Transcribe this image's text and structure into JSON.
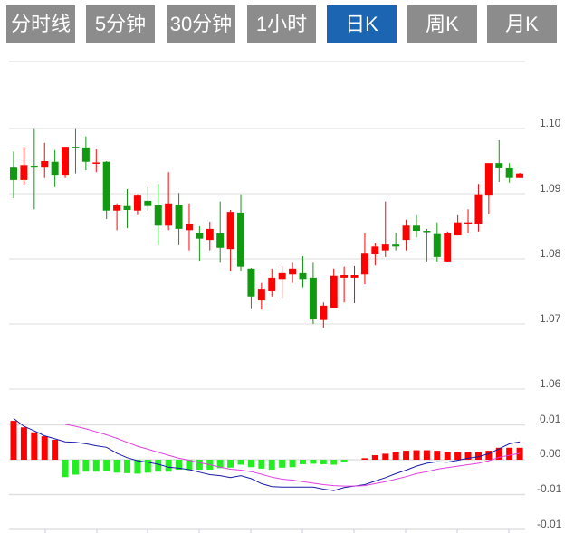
{
  "tabs": [
    {
      "label": "分时线",
      "active": false
    },
    {
      "label": "5分钟",
      "active": false
    },
    {
      "label": "30分钟",
      "active": false
    },
    {
      "label": "1小时",
      "active": false
    },
    {
      "label": "日K",
      "active": true
    },
    {
      "label": "周K",
      "active": false
    },
    {
      "label": "月K",
      "active": false
    }
  ],
  "colors": {
    "tab_bg": "#8c8c8c",
    "tab_active_bg": "#1b65b2",
    "up": "#ff0000",
    "down": "#129912",
    "macd_up": "#ff0000",
    "macd_down": "#22ee22",
    "dif_line": "#1a1aa8",
    "dea_line": "#e040e0"
  },
  "chart_data": [
    {
      "type": "candlestick",
      "ylim": [
        1.06,
        1.11
      ],
      "y_ticks": [
        "1.10",
        "1.09",
        "1.08",
        "1.07",
        "1.06"
      ],
      "y_tick_values": [
        1.1,
        1.09,
        1.08,
        1.07,
        1.06
      ],
      "grid": true,
      "candles": [
        {
          "o": 1.094,
          "h": 1.0965,
          "l": 1.0893,
          "c": 1.0921
        },
        {
          "o": 1.0921,
          "h": 1.0972,
          "l": 1.0914,
          "c": 1.0944
        },
        {
          "o": 1.0943,
          "h": 1.0999,
          "l": 1.0876,
          "c": 1.094
        },
        {
          "o": 1.094,
          "h": 1.0978,
          "l": 1.0924,
          "c": 1.095
        },
        {
          "o": 1.0949,
          "h": 1.0967,
          "l": 1.091,
          "c": 1.0929
        },
        {
          "o": 1.0929,
          "h": 1.0972,
          "l": 1.0924,
          "c": 1.0972
        },
        {
          "o": 1.0972,
          "h": 1.0999,
          "l": 1.0931,
          "c": 1.0971
        },
        {
          "o": 1.0971,
          "h": 1.0988,
          "l": 1.0936,
          "c": 1.0949
        },
        {
          "o": 1.0947,
          "h": 1.0968,
          "l": 1.0933,
          "c": 1.0948
        },
        {
          "o": 1.0949,
          "h": 1.095,
          "l": 1.0861,
          "c": 1.0874
        },
        {
          "o": 1.0874,
          "h": 1.0885,
          "l": 1.0844,
          "c": 1.0882
        },
        {
          "o": 1.0881,
          "h": 1.0907,
          "l": 1.0847,
          "c": 1.0875
        },
        {
          "o": 1.0874,
          "h": 1.0899,
          "l": 1.0867,
          "c": 1.0897
        },
        {
          "o": 1.0889,
          "h": 1.091,
          "l": 1.0874,
          "c": 1.0881
        },
        {
          "o": 1.0882,
          "h": 1.0915,
          "l": 1.0821,
          "c": 1.0851
        },
        {
          "o": 1.0851,
          "h": 1.0933,
          "l": 1.0844,
          "c": 1.0885
        },
        {
          "o": 1.0883,
          "h": 1.0901,
          "l": 1.0821,
          "c": 1.0846
        },
        {
          "o": 1.0844,
          "h": 1.0885,
          "l": 1.0813,
          "c": 1.0853
        },
        {
          "o": 1.084,
          "h": 1.085,
          "l": 1.0797,
          "c": 1.0831
        },
        {
          "o": 1.0829,
          "h": 1.0857,
          "l": 1.0813,
          "c": 1.0846
        },
        {
          "o": 1.0839,
          "h": 1.0888,
          "l": 1.0794,
          "c": 1.0817
        },
        {
          "o": 1.0815,
          "h": 1.0875,
          "l": 1.0781,
          "c": 1.0872
        },
        {
          "o": 1.0871,
          "h": 1.0899,
          "l": 1.0781,
          "c": 1.0788
        },
        {
          "o": 1.0785,
          "h": 1.0786,
          "l": 1.0724,
          "c": 1.0742
        },
        {
          "o": 1.0736,
          "h": 1.0763,
          "l": 1.0722,
          "c": 1.0754
        },
        {
          "o": 1.075,
          "h": 1.0785,
          "l": 1.0742,
          "c": 1.0771
        },
        {
          "o": 1.0769,
          "h": 1.0789,
          "l": 1.074,
          "c": 1.0778
        },
        {
          "o": 1.0776,
          "h": 1.0794,
          "l": 1.0763,
          "c": 1.0785
        },
        {
          "o": 1.0778,
          "h": 1.0804,
          "l": 1.0756,
          "c": 1.0769
        },
        {
          "o": 1.0771,
          "h": 1.0794,
          "l": 1.07,
          "c": 1.0707
        },
        {
          "o": 1.0706,
          "h": 1.0733,
          "l": 1.0694,
          "c": 1.0728
        },
        {
          "o": 1.0725,
          "h": 1.0785,
          "l": 1.0725,
          "c": 1.0774
        },
        {
          "o": 1.0771,
          "h": 1.0788,
          "l": 1.0733,
          "c": 1.0775
        },
        {
          "o": 1.0771,
          "h": 1.0789,
          "l": 1.0732,
          "c": 1.0775
        },
        {
          "o": 1.0776,
          "h": 1.0839,
          "l": 1.0761,
          "c": 1.0808
        },
        {
          "o": 1.0807,
          "h": 1.0824,
          "l": 1.079,
          "c": 1.0819
        },
        {
          "o": 1.0813,
          "h": 1.0888,
          "l": 1.0803,
          "c": 1.0822
        },
        {
          "o": 1.0822,
          "h": 1.084,
          "l": 1.0813,
          "c": 1.0819
        },
        {
          "o": 1.0829,
          "h": 1.086,
          "l": 1.0813,
          "c": 1.0851
        },
        {
          "o": 1.0851,
          "h": 1.0867,
          "l": 1.0833,
          "c": 1.0843
        },
        {
          "o": 1.0843,
          "h": 1.0846,
          "l": 1.0796,
          "c": 1.0842
        },
        {
          "o": 1.0838,
          "h": 1.0856,
          "l": 1.0796,
          "c": 1.0803
        },
        {
          "o": 1.0796,
          "h": 1.0842,
          "l": 1.0796,
          "c": 1.0839
        },
        {
          "o": 1.0836,
          "h": 1.0867,
          "l": 1.0836,
          "c": 1.0856
        },
        {
          "o": 1.0854,
          "h": 1.0876,
          "l": 1.0839,
          "c": 1.0856
        },
        {
          "o": 1.0854,
          "h": 1.0915,
          "l": 1.0842,
          "c": 1.0899
        },
        {
          "o": 1.0897,
          "h": 1.0947,
          "l": 1.0868,
          "c": 1.0947
        },
        {
          "o": 1.0947,
          "h": 1.0982,
          "l": 1.0918,
          "c": 1.0939
        },
        {
          "o": 1.0939,
          "h": 1.0947,
          "l": 1.0917,
          "c": 1.0924
        },
        {
          "o": 1.0924,
          "h": 1.0932,
          "l": 1.0924,
          "c": 1.0931
        }
      ]
    },
    {
      "type": "bar+line",
      "ylim": [
        -0.014,
        0.01
      ],
      "y_ticks": [
        "0.01",
        "0.00",
        "-0.01",
        "-0.01"
      ],
      "y_tick_values": [
        0.007,
        0,
        -0.007,
        -0.014
      ],
      "grid": true,
      "histogram": [
        0.0078,
        0.0065,
        0.0055,
        0.0047,
        0.004,
        -0.0035,
        -0.003,
        -0.0024,
        -0.0024,
        -0.0022,
        -0.0026,
        -0.0027,
        -0.0028,
        -0.0026,
        -0.0024,
        -0.0024,
        -0.002,
        -0.0021,
        -0.002,
        -0.002,
        -0.0017,
        -0.0016,
        -0.001,
        -0.0015,
        -0.0018,
        -0.002,
        -0.0016,
        -0.0015,
        -0.0009,
        -0.0008,
        -0.0009,
        -0.001,
        -0.0004,
        0,
        0.0003,
        0.0009,
        0.0012,
        0.0015,
        0.0018,
        0.0019,
        0.0019,
        0.0018,
        0.0015,
        0.0015,
        0.0015,
        0.0015,
        0.0018,
        0.0024,
        0.0024,
        0.0024
      ],
      "dif": [
        0.0083,
        0.0067,
        0.0058,
        0.0048,
        0.0042,
        0.0036,
        0.0035,
        0.0032,
        0.0028,
        0.0025,
        0.0013,
        0.0004,
        -0.0002,
        -0.0005,
        -0.0009,
        -0.0015,
        -0.0017,
        -0.002,
        -0.0025,
        -0.003,
        -0.0032,
        -0.0036,
        -0.0032,
        -0.0038,
        -0.0048,
        -0.0054,
        -0.0055,
        -0.0055,
        -0.0055,
        -0.0055,
        -0.0059,
        -0.0062,
        -0.0056,
        -0.0053,
        -0.005,
        -0.0043,
        -0.0036,
        -0.0028,
        -0.0021,
        -0.0013,
        -0.0007,
        -0.0004,
        -0.0005,
        -0.0001,
        0.0003,
        0.0006,
        0.0012,
        0.0022,
        0.0032,
        0.0036
      ],
      "dea": [
        null,
        null,
        null,
        null,
        null,
        0.0071,
        0.0067,
        0.0062,
        0.0056,
        0.005,
        0.0043,
        0.0035,
        0.0027,
        0.0021,
        0.0015,
        0.0009,
        0.0003,
        -0.0001,
        -0.0006,
        -0.001,
        -0.0015,
        -0.0019,
        -0.0021,
        -0.0024,
        -0.0029,
        -0.0035,
        -0.0039,
        -0.0041,
        -0.0044,
        -0.0047,
        -0.005,
        -0.0052,
        -0.0053,
        -0.0053,
        -0.0052,
        -0.0048,
        -0.0044,
        -0.0039,
        -0.0034,
        -0.0028,
        -0.0024,
        -0.0019,
        -0.0016,
        -0.0013,
        -0.001,
        -0.0007,
        -0.0002,
        0.0005,
        0.0009,
        0.0013
      ]
    }
  ]
}
